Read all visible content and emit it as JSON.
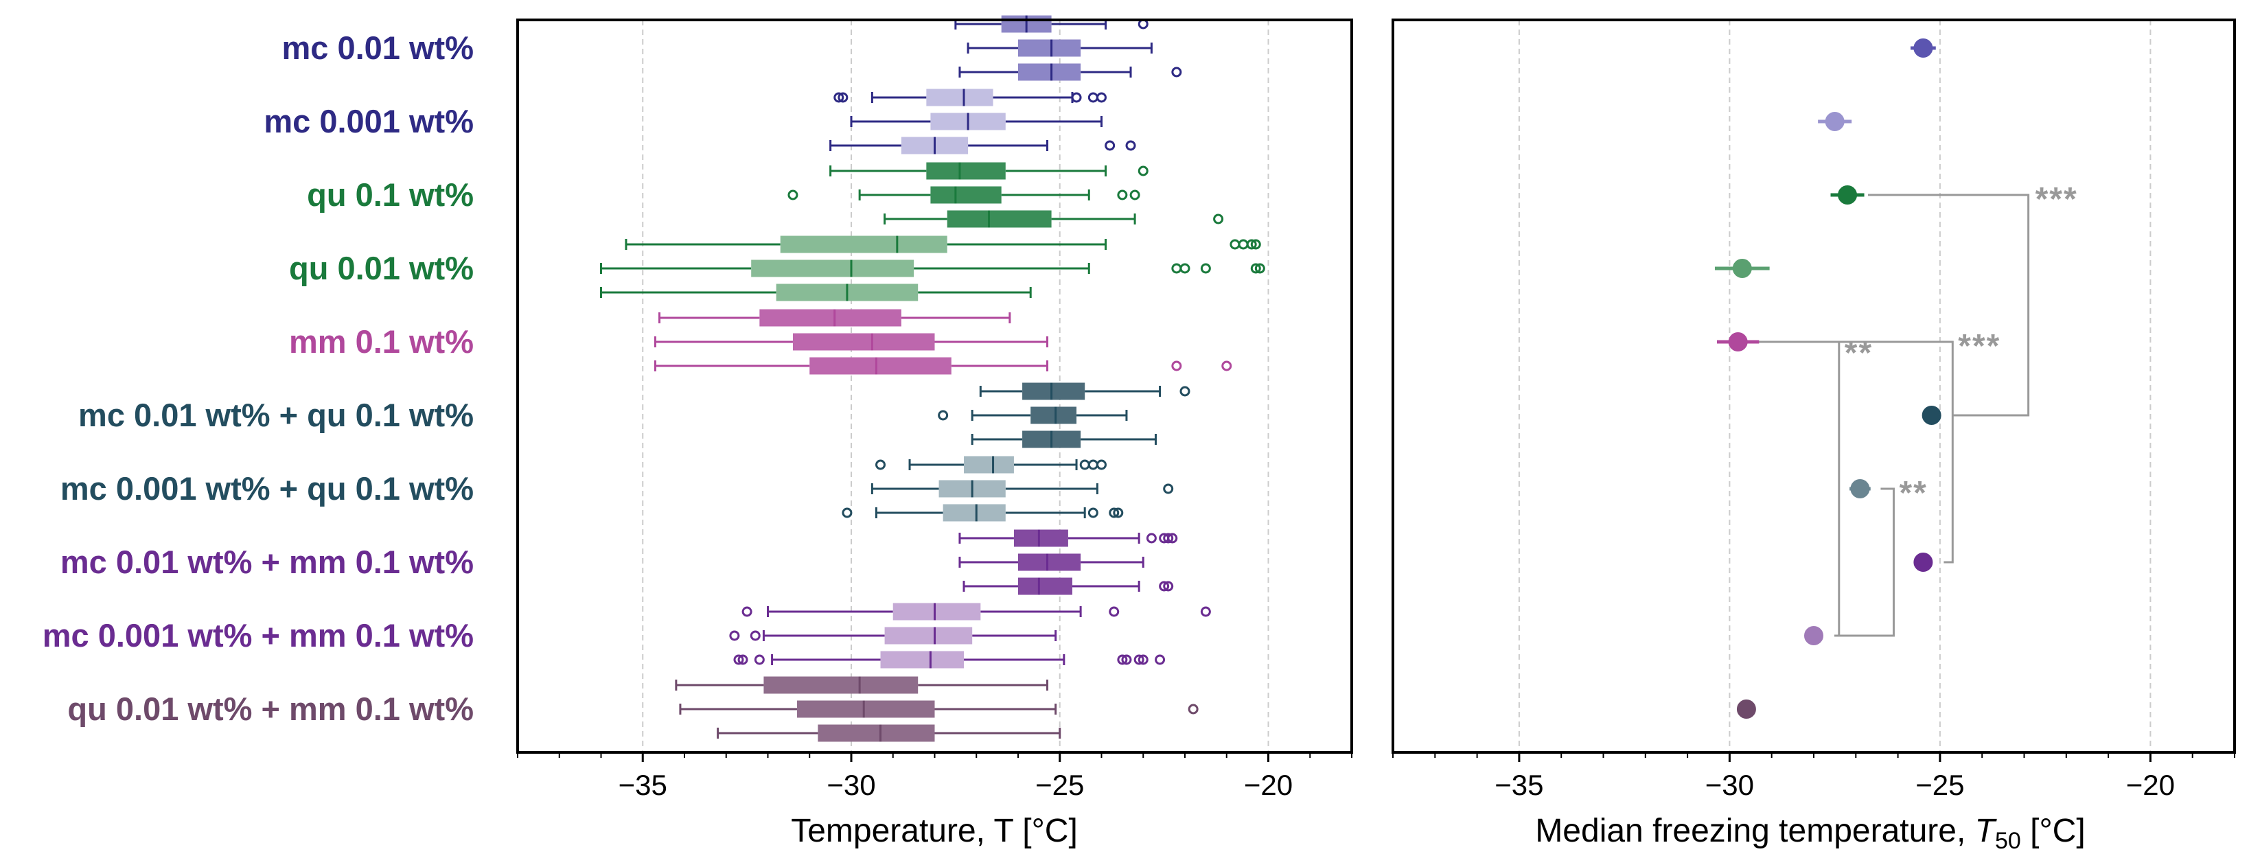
{
  "chart_data": [
    {
      "type": "boxplot",
      "orientation": "horizontal",
      "xlabel": "Temperature, T [°C]",
      "xlim": [
        -38,
        -18
      ],
      "xticks": [
        -35,
        -30,
        -25,
        -20
      ],
      "grid": "vertical dashed",
      "categories": [
        {
          "label": "mc 0.01 wt%",
          "color": "#2e2a84",
          "fill": "#8c86c6",
          "replicates": [
            {
              "q1": -26.4,
              "median": -25.8,
              "q3": -25.2,
              "whisker_low": -27.5,
              "whisker_high": -23.9,
              "outliers": [
                -23.0
              ]
            },
            {
              "q1": -26.0,
              "median": -25.2,
              "q3": -24.5,
              "whisker_low": -27.2,
              "whisker_high": -22.8,
              "outliers": []
            },
            {
              "q1": -26.0,
              "median": -25.2,
              "q3": -24.5,
              "whisker_low": -27.4,
              "whisker_high": -23.3,
              "outliers": [
                -22.2
              ]
            }
          ]
        },
        {
          "label": "mc 0.001 wt%",
          "color": "#2e2a84",
          "fill": "#c2bfe2",
          "replicates": [
            {
              "q1": -28.2,
              "median": -27.3,
              "q3": -26.6,
              "whisker_low": -29.5,
              "whisker_high": -24.7,
              "outliers": [
                -30.3,
                -30.2,
                -24.6,
                -24.2,
                -24.0
              ]
            },
            {
              "q1": -28.1,
              "median": -27.2,
              "q3": -26.3,
              "whisker_low": -30.0,
              "whisker_high": -24.0,
              "outliers": []
            },
            {
              "q1": -28.8,
              "median": -28.0,
              "q3": -27.2,
              "whisker_low": -30.5,
              "whisker_high": -25.3,
              "outliers": [
                -23.8,
                -23.3
              ]
            }
          ]
        },
        {
          "label": "qu 0.1 wt%",
          "color": "#1a7a3c",
          "fill": "#3a8e58",
          "replicates": [
            {
              "q1": -28.2,
              "median": -27.4,
              "q3": -26.3,
              "whisker_low": -30.5,
              "whisker_high": -23.9,
              "outliers": [
                -23.0
              ]
            },
            {
              "q1": -28.1,
              "median": -27.5,
              "q3": -26.4,
              "whisker_low": -29.8,
              "whisker_high": -24.3,
              "outliers": [
                -31.4,
                -23.5,
                -23.2
              ]
            },
            {
              "q1": -27.7,
              "median": -26.7,
              "q3": -25.2,
              "whisker_low": -29.2,
              "whisker_high": -23.2,
              "outliers": [
                -21.2
              ]
            }
          ]
        },
        {
          "label": "qu 0.01 wt%",
          "color": "#1a7a3c",
          "fill": "#88bb96",
          "replicates": [
            {
              "q1": -31.7,
              "median": -28.9,
              "q3": -27.7,
              "whisker_low": -35.4,
              "whisker_high": -23.9,
              "outliers": [
                -20.8,
                -20.6,
                -20.4,
                -20.3
              ]
            },
            {
              "q1": -32.4,
              "median": -30.0,
              "q3": -28.5,
              "whisker_low": -36.0,
              "whisker_high": -24.3,
              "outliers": [
                -22.2,
                -22.0,
                -21.5,
                -20.3,
                -20.2
              ]
            },
            {
              "q1": -31.8,
              "median": -30.1,
              "q3": -28.4,
              "whisker_low": -36.0,
              "whisker_high": -25.7,
              "outliers": []
            }
          ]
        },
        {
          "label": "mm 0.1 wt%",
          "color": "#b0489c",
          "fill": "#bd67ad",
          "replicates": [
            {
              "q1": -32.2,
              "median": -30.4,
              "q3": -28.8,
              "whisker_low": -34.6,
              "whisker_high": -26.2,
              "outliers": []
            },
            {
              "q1": -31.4,
              "median": -29.5,
              "q3": -28.0,
              "whisker_low": -34.7,
              "whisker_high": -25.3,
              "outliers": []
            },
            {
              "q1": -31.0,
              "median": -29.4,
              "q3": -27.6,
              "whisker_low": -34.7,
              "whisker_high": -25.3,
              "outliers": [
                -22.2,
                -21.0
              ]
            }
          ]
        },
        {
          "label": "mc 0.01 wt% + qu 0.1 wt%",
          "color": "#234d5f",
          "fill": "#4c6b79",
          "replicates": [
            {
              "q1": -25.9,
              "median": -25.2,
              "q3": -24.4,
              "whisker_low": -26.9,
              "whisker_high": -22.6,
              "outliers": [
                -22.0
              ]
            },
            {
              "q1": -25.7,
              "median": -25.1,
              "q3": -24.6,
              "whisker_low": -27.1,
              "whisker_high": -23.4,
              "outliers": [
                -27.8
              ]
            },
            {
              "q1": -25.9,
              "median": -25.2,
              "q3": -24.5,
              "whisker_low": -27.1,
              "whisker_high": -22.7,
              "outliers": []
            }
          ]
        },
        {
          "label": "mc 0.001 wt% + qu 0.1 wt%",
          "color": "#234d5f",
          "fill": "#a5b8c0",
          "replicates": [
            {
              "q1": -27.3,
              "median": -26.6,
              "q3": -26.1,
              "whisker_low": -28.6,
              "whisker_high": -24.6,
              "outliers": [
                -29.3,
                -24.4,
                -24.2,
                -24.0
              ]
            },
            {
              "q1": -27.9,
              "median": -27.1,
              "q3": -26.3,
              "whisker_low": -29.5,
              "whisker_high": -24.1,
              "outliers": [
                -22.4
              ]
            },
            {
              "q1": -27.8,
              "median": -27.0,
              "q3": -26.3,
              "whisker_low": -29.4,
              "whisker_high": -24.4,
              "outliers": [
                -30.1,
                -24.2,
                -23.7,
                -23.6
              ]
            }
          ]
        },
        {
          "label": "mc 0.01 wt% + mm 0.1 wt%",
          "color": "#6a2c91",
          "fill": "#834aa0",
          "replicates": [
            {
              "q1": -26.1,
              "median": -25.5,
              "q3": -24.8,
              "whisker_low": -27.4,
              "whisker_high": -23.1,
              "outliers": [
                -22.8,
                -22.5,
                -22.4,
                -22.3
              ]
            },
            {
              "q1": -26.0,
              "median": -25.3,
              "q3": -24.5,
              "whisker_low": -27.4,
              "whisker_high": -23.0,
              "outliers": []
            },
            {
              "q1": -26.0,
              "median": -25.5,
              "q3": -24.7,
              "whisker_low": -27.3,
              "whisker_high": -23.1,
              "outliers": [
                -22.5,
                -22.4
              ]
            }
          ]
        },
        {
          "label": "mc 0.001 wt% + mm 0.1 wt%",
          "color": "#6a2c91",
          "fill": "#c5aad5",
          "replicates": [
            {
              "q1": -29.0,
              "median": -28.0,
              "q3": -26.9,
              "whisker_low": -32.0,
              "whisker_high": -24.5,
              "outliers": [
                -32.5,
                -23.7,
                -21.5
              ]
            },
            {
              "q1": -29.2,
              "median": -28.0,
              "q3": -27.1,
              "whisker_low": -32.1,
              "whisker_high": -25.1,
              "outliers": [
                -32.8,
                -32.3
              ]
            },
            {
              "q1": -29.3,
              "median": -28.1,
              "q3": -27.3,
              "whisker_low": -31.9,
              "whisker_high": -24.9,
              "outliers": [
                -32.7,
                -32.6,
                -32.2,
                -23.5,
                -23.4,
                -23.1,
                -23.0,
                -22.6
              ]
            }
          ]
        },
        {
          "label": "qu 0.01 wt% + mm 0.1 wt%",
          "color": "#6e4a6a",
          "fill": "#8f6d8b",
          "replicates": [
            {
              "q1": -32.1,
              "median": -29.8,
              "q3": -28.4,
              "whisker_low": -34.2,
              "whisker_high": -25.3,
              "outliers": []
            },
            {
              "q1": -31.3,
              "median": -29.7,
              "q3": -28.0,
              "whisker_low": -34.1,
              "whisker_high": -25.1,
              "outliers": [
                -21.8
              ]
            },
            {
              "q1": -30.8,
              "median": -29.3,
              "q3": -28.0,
              "whisker_low": -33.2,
              "whisker_high": -25.0,
              "outliers": []
            }
          ]
        }
      ]
    },
    {
      "type": "scatter",
      "xlabel": "Median freezing temperature, T50 [°C]",
      "xlabel_main": "Median freezing temperature, ",
      "xlabel_symbol": "T",
      "xlabel_sub": "50",
      "xlabel_unit": " [°C]",
      "xlim": [
        -38,
        -18
      ],
      "xticks": [
        -35,
        -30,
        -25,
        -20
      ],
      "grid": "vertical dashed",
      "points": [
        {
          "label": "mc 0.01 wt%",
          "t50": -25.4,
          "err": 0.3,
          "color": "#5b55b0"
        },
        {
          "label": "mc 0.001 wt%",
          "t50": -27.5,
          "err": 0.4,
          "color": "#9a94cf"
        },
        {
          "label": "qu 0.1 wt%",
          "t50": -27.2,
          "err": 0.4,
          "color": "#1a7a3c"
        },
        {
          "label": "qu 0.01 wt%",
          "t50": -29.7,
          "err": 0.65,
          "color": "#5aa070"
        },
        {
          "label": "mm 0.1 wt%",
          "t50": -29.8,
          "err": 0.5,
          "color": "#b0489c"
        },
        {
          "label": "mc 0.01 wt% + qu 0.1 wt%",
          "t50": -25.2,
          "err": 0.0,
          "color": "#234d5f"
        },
        {
          "label": "mc 0.001 wt% + qu 0.1 wt%",
          "t50": -26.9,
          "err": 0.25,
          "color": "#6a8591"
        },
        {
          "label": "mc 0.01 wt% + mm 0.1 wt%",
          "t50": -25.4,
          "err": 0.0,
          "color": "#6a2c91"
        },
        {
          "label": "mc 0.001 wt% + mm 0.1 wt%",
          "t50": -28.0,
          "err": 0.2,
          "color": "#a07ab8"
        },
        {
          "label": "qu 0.01 wt% + mm 0.1 wt%",
          "t50": -29.6,
          "err": 0.2,
          "color": "#6e4a6a"
        }
      ],
      "significance": [
        {
          "from": "qu 0.1 wt%",
          "to": "mc 0.01 wt% + qu 0.1 wt%",
          "label": "***"
        },
        {
          "from": "mm 0.1 wt%",
          "to": "mc 0.01 wt% + mm 0.1 wt%",
          "label": "***"
        },
        {
          "from": "mm 0.1 wt%",
          "to": "mc 0.001 wt% + mm 0.1 wt%",
          "label": "**"
        },
        {
          "from": "mc 0.001 wt% + qu 0.1 wt%",
          "to": "mc 0.001 wt% + mm 0.1 wt%",
          "label": "**"
        }
      ]
    }
  ]
}
